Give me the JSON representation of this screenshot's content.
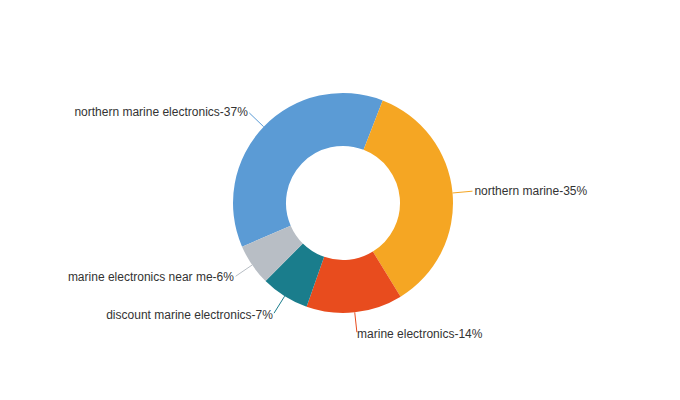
{
  "chart_data": {
    "type": "pie",
    "categories": [
      "northern marine electronics-37%",
      "northern marine-35%",
      "marine electronics-14%",
      "discount marine electronics-7%",
      "marine electronics near me-6%"
    ],
    "values": [
      37,
      35,
      14,
      7,
      6
    ],
    "colors": [
      "#5b9bd5",
      "#f5a623",
      "#e84c1e",
      "#1a7d8c",
      "#b8bec5"
    ]
  }
}
